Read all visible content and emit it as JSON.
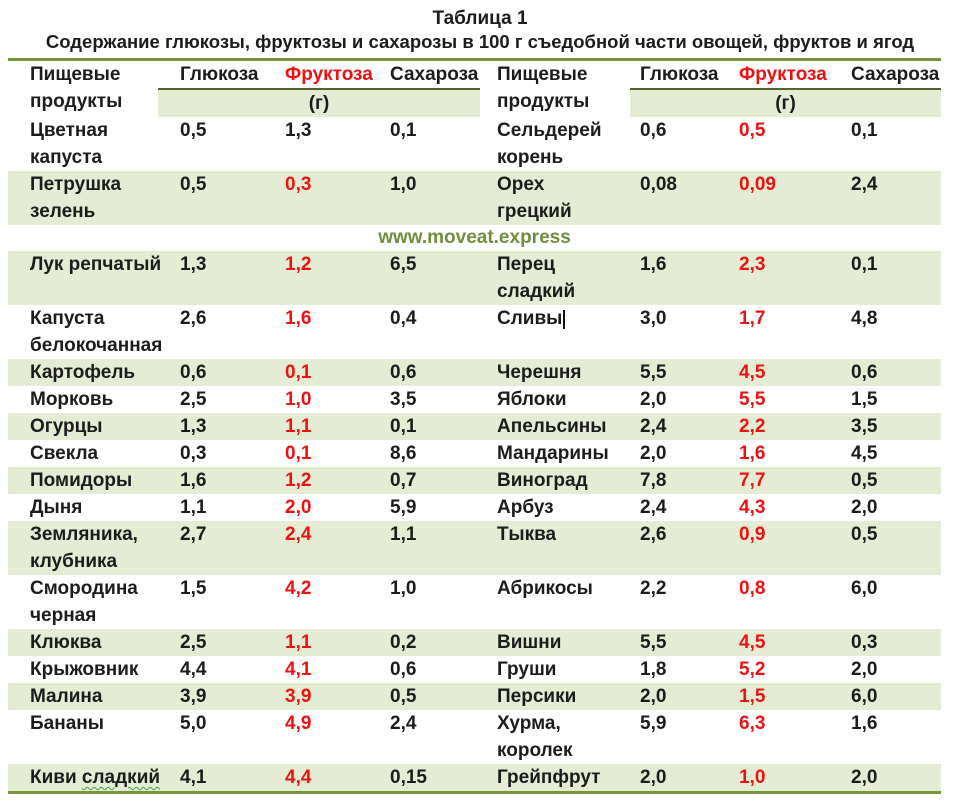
{
  "title": "Таблица 1",
  "subtitle": "Содержание глюкозы, фруктозы и сахарозы в 100 г съедобной части овощей, фруктов и ягод",
  "watermark": "www.moveat.express",
  "header": {
    "product": "Пищевые\nпродукты",
    "glucose": "Глюкоза",
    "fructose": "Фруктоза",
    "sucrose": "Сахароза",
    "unit": "(г)"
  },
  "colors": {
    "border-green": "#77933c",
    "header-line": "#55622c",
    "row-green": "#e4edd3",
    "accent-red": "#ee1111",
    "text": "#1c1c1c",
    "watermark-green": "#6e8f3c",
    "squiggle-green": "#3fa33f",
    "caret": "#111111"
  },
  "rows": [
    {
      "shaded": false,
      "left": {
        "name": "Цветная\nкапуста",
        "glucose": "0,5",
        "fructose": "1,3",
        "fructose_red": false,
        "sucrose": "0,1"
      },
      "right": {
        "name": "Сельдерей\nкорень",
        "glucose": "0,6",
        "fructose": "0,5",
        "fructose_red": true,
        "sucrose": "0,1"
      }
    },
    {
      "shaded": true,
      "left": {
        "name": "Петрушка\nзелень",
        "glucose": "0,5",
        "fructose": "0,3",
        "fructose_red": true,
        "sucrose": "1,0"
      },
      "right": {
        "name": "Орех\nгрецкий",
        "glucose": "0,08",
        "fructose": "0,09",
        "fructose_red": true,
        "sucrose": "2,4"
      }
    },
    {
      "shaded": true,
      "left": {
        "name": "Лук репчатый",
        "glucose": "1,3",
        "fructose": "1,2",
        "fructose_red": true,
        "sucrose": "6,5"
      },
      "right": {
        "name": "Перец\nсладкий",
        "glucose": "1,6",
        "fructose": "2,3",
        "fructose_red": true,
        "sucrose": "0,1"
      }
    },
    {
      "shaded": false,
      "left": {
        "name": "Капуста\nбелокочанная",
        "glucose": "2,6",
        "fructose": "1,6",
        "fructose_red": true,
        "sucrose": "0,4"
      },
      "right": {
        "name": "Сливы",
        "glucose": "3,0",
        "fructose": "1,7",
        "fructose_red": true,
        "sucrose": "4,8",
        "caret": true
      }
    },
    {
      "shaded": true,
      "left": {
        "name": "Картофель",
        "glucose": "0,6",
        "fructose": "0,1",
        "fructose_red": true,
        "sucrose": "0,6"
      },
      "right": {
        "name": "Черешня",
        "glucose": "5,5",
        "fructose": "4,5",
        "fructose_red": true,
        "sucrose": "0,6"
      }
    },
    {
      "shaded": false,
      "left": {
        "name": "Морковь",
        "glucose": "2,5",
        "fructose": "1,0",
        "fructose_red": true,
        "sucrose": "3,5"
      },
      "right": {
        "name": "Яблоки",
        "glucose": "2,0",
        "fructose": "5,5",
        "fructose_red": true,
        "sucrose": "1,5"
      }
    },
    {
      "shaded": true,
      "left": {
        "name": "Огурцы",
        "glucose": "1,3",
        "fructose": "1,1",
        "fructose_red": true,
        "sucrose": "0,1"
      },
      "right": {
        "name": "Апельсины",
        "glucose": "2,4",
        "fructose": "2,2",
        "fructose_red": true,
        "sucrose": "3,5"
      }
    },
    {
      "shaded": false,
      "left": {
        "name": "Свекла",
        "glucose": "0,3",
        "fructose": "0,1",
        "fructose_red": true,
        "sucrose": "8,6"
      },
      "right": {
        "name": "Мандарины",
        "glucose": "2,0",
        "fructose": "1,6",
        "fructose_red": true,
        "sucrose": "4,5"
      }
    },
    {
      "shaded": true,
      "left": {
        "name": "Помидоры",
        "glucose": "1,6",
        "fructose": "1,2",
        "fructose_red": true,
        "sucrose": "0,7"
      },
      "right": {
        "name": "Виноград",
        "glucose": "7,8",
        "fructose": "7,7",
        "fructose_red": true,
        "sucrose": "0,5"
      }
    },
    {
      "shaded": false,
      "left": {
        "name": "Дыня",
        "glucose": "1,1",
        "fructose": "2,0",
        "fructose_red": true,
        "sucrose": "5,9"
      },
      "right": {
        "name": "Арбуз",
        "glucose": "2,4",
        "fructose": "4,3",
        "fructose_red": true,
        "sucrose": "2,0"
      }
    },
    {
      "shaded": true,
      "left": {
        "name": "Земляника,\nклубника",
        "glucose": "2,7",
        "fructose": "2,4",
        "fructose_red": true,
        "sucrose": "1,1"
      },
      "right": {
        "name": "Тыква",
        "glucose": "2,6",
        "fructose": "0,9",
        "fructose_red": true,
        "sucrose": "0,5"
      }
    },
    {
      "shaded": false,
      "left": {
        "name": "Смородина\nчерная",
        "glucose": "1,5",
        "fructose": "4,2",
        "fructose_red": true,
        "sucrose": "1,0"
      },
      "right": {
        "name": "Абрикосы",
        "glucose": "2,2",
        "fructose": "0,8",
        "fructose_red": true,
        "sucrose": "6,0"
      }
    },
    {
      "shaded": true,
      "left": {
        "name": "Клюква",
        "glucose": "2,5",
        "fructose": "1,1",
        "fructose_red": true,
        "sucrose": "0,2"
      },
      "right": {
        "name": "Вишни",
        "glucose": "5,5",
        "fructose": "4,5",
        "fructose_red": true,
        "sucrose": "0,3"
      }
    },
    {
      "shaded": false,
      "left": {
        "name": "Крыжовник",
        "glucose": "4,4",
        "fructose": "4,1",
        "fructose_red": true,
        "sucrose": "0,6"
      },
      "right": {
        "name": "Груши",
        "glucose": "1,8",
        "fructose": "5,2",
        "fructose_red": true,
        "sucrose": "2,0"
      }
    },
    {
      "shaded": true,
      "left": {
        "name": "Малина",
        "glucose": "3,9",
        "fructose": "3,9",
        "fructose_red": true,
        "sucrose": "0,5"
      },
      "right": {
        "name": "Персики",
        "glucose": "2,0",
        "fructose": "1,5",
        "fructose_red": true,
        "sucrose": "6,0"
      }
    },
    {
      "shaded": false,
      "left": {
        "name": "Бананы",
        "glucose": "5,0",
        "fructose": "4,9",
        "fructose_red": true,
        "sucrose": "2,4"
      },
      "right": {
        "name": "Хурма,\nкоролек",
        "glucose": "5,9",
        "fructose": "6,3",
        "fructose_red": true,
        "sucrose": "1,6"
      }
    },
    {
      "shaded": true,
      "left": {
        "name": "Киви ",
        "name_squiggle": "сладкий",
        "glucose": "4,1",
        "fructose": "4,4",
        "fructose_red": true,
        "sucrose": "0,15"
      },
      "right": {
        "name": "Грейпфрут",
        "glucose": "2,0",
        "fructose": "1,0",
        "fructose_red": true,
        "sucrose": "2,0"
      }
    }
  ]
}
